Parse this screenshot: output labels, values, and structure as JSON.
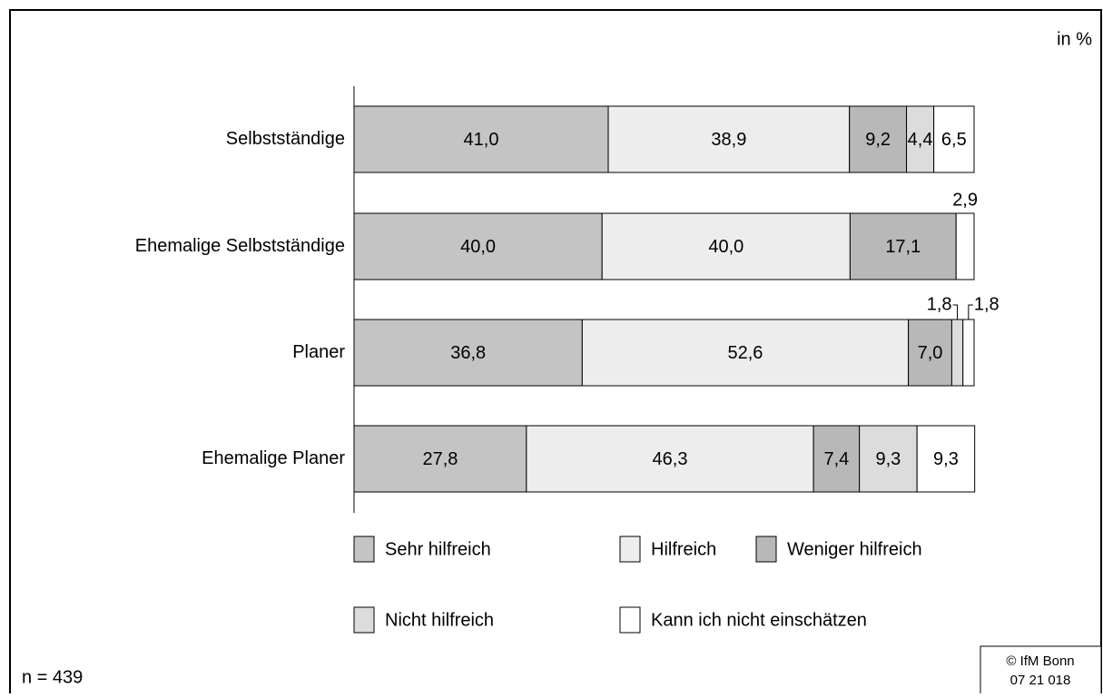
{
  "chart_data": {
    "type": "stacked_barh",
    "unit_label": "in %",
    "note": "n = 439",
    "source": [
      "© IfM Bonn",
      "07 21 018"
    ],
    "categories": [
      "Selbstständige",
      "Ehemalige Selbstständige",
      "Planer",
      "Ehemalige Planer"
    ],
    "xlim": [
      0,
      100
    ],
    "series": [
      {
        "name": "Sehr hilfreich",
        "color": "#c4c4c4",
        "values": [
          41.0,
          40.0,
          36.8,
          27.8
        ],
        "value_labels": [
          "41,0",
          "40,0",
          "36,8",
          "27,8"
        ]
      },
      {
        "name": "Hilfreich",
        "color": "#ededed",
        "values": [
          38.9,
          40.0,
          52.6,
          46.3
        ],
        "value_labels": [
          "38,9",
          "40,0",
          "52,6",
          "46,3"
        ]
      },
      {
        "name": "Weniger hilfreich",
        "color": "#b8b8b8",
        "values": [
          9.2,
          17.1,
          7.0,
          7.4
        ],
        "value_labels": [
          "9,2",
          "17,1",
          "7,0",
          "7,4"
        ]
      },
      {
        "name": "Nicht hilfreich",
        "color": "#dcdcdc",
        "values": [
          4.4,
          null,
          1.8,
          9.3
        ],
        "value_labels": [
          "4,4",
          null,
          "1,8",
          "9,3"
        ]
      },
      {
        "name": "Kann ich nicht einschätzen",
        "color": "#ffffff",
        "values": [
          6.5,
          2.9,
          1.8,
          9.3
        ],
        "value_labels": [
          "6,5",
          "2,9",
          "1,8",
          "9,3"
        ]
      }
    ]
  }
}
